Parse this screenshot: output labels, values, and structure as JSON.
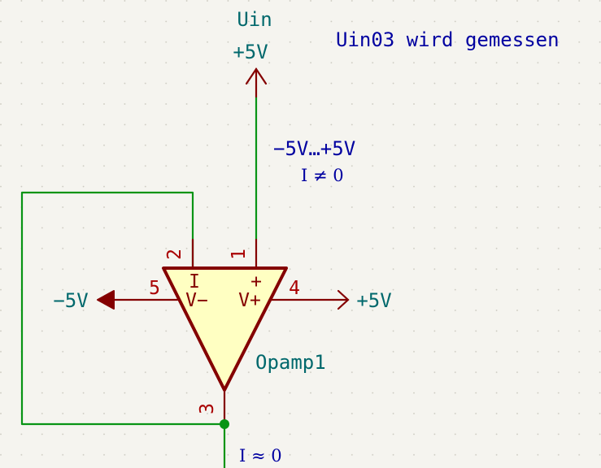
{
  "component": {
    "reference": "Opamp1",
    "pins": [
      {
        "number": "1",
        "name": "V+"
      },
      {
        "number": "2",
        "name": "I"
      },
      {
        "number": "3",
        "name": ""
      },
      {
        "number": "4",
        "name": ""
      },
      {
        "number": "5",
        "name": "V−"
      }
    ],
    "plus_sign": "+"
  },
  "power": {
    "top_net_name": "Uin",
    "top_value": "+5V",
    "left": "−5V",
    "right": "+5V"
  },
  "notes": {
    "measured": "Uin03 wird gemessen",
    "range": "−5V…+5V",
    "current_top": "I ≠ 0",
    "current_bottom": "I ≈ 0"
  },
  "colors": {
    "wire": "#089415",
    "symbol_outline": "#840000",
    "symbol_fill": "#ffffc2",
    "power_label": "#00686c",
    "note_text": "#0000a0",
    "background": "#f5f4ef",
    "junction": "#089415"
  }
}
